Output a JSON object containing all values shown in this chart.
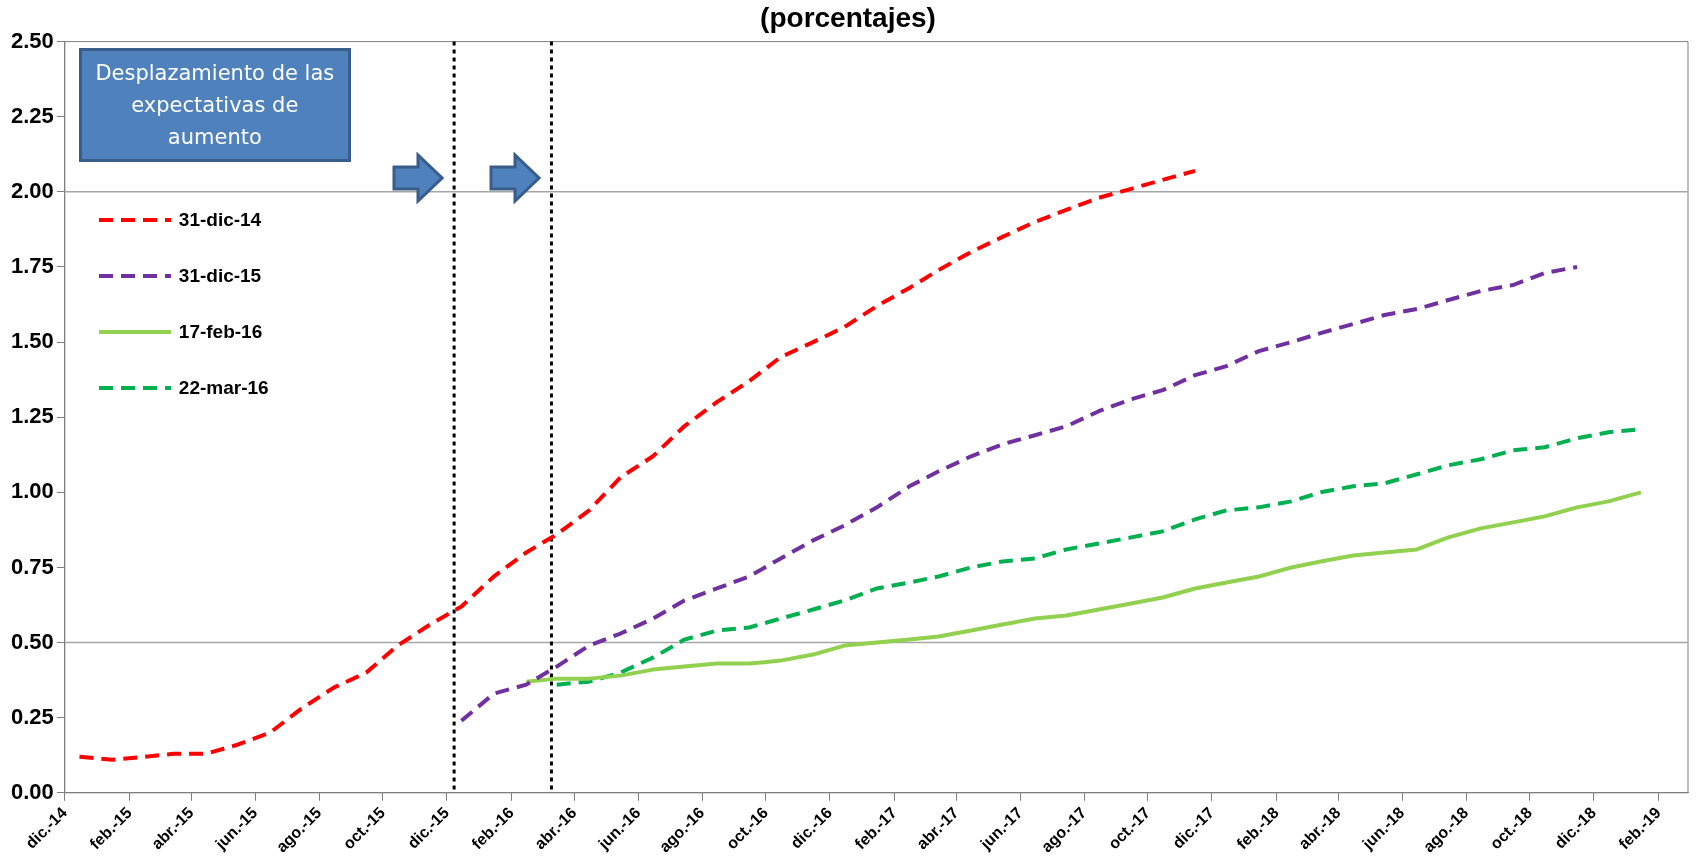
{
  "chart_data": {
    "type": "line",
    "title": "(porcentajes)",
    "annotations": [
      "Desplazamiento de las expectativas de aumento"
    ],
    "xlim": [
      "2014-12",
      "2019-03"
    ],
    "xticks": [
      {
        "value": "2014-12",
        "label": "dic.-14"
      },
      {
        "value": "2015-02",
        "label": "feb.-15"
      },
      {
        "value": "2015-04",
        "label": "abr.-15"
      },
      {
        "value": "2015-06",
        "label": "jun.-15"
      },
      {
        "value": "2015-08",
        "label": "ago.-15"
      },
      {
        "value": "2015-10",
        "label": "oct.-15"
      },
      {
        "value": "2015-12",
        "label": "dic.-15"
      },
      {
        "value": "2016-02",
        "label": "feb.-16"
      },
      {
        "value": "2016-04",
        "label": "abr.-16"
      },
      {
        "value": "2016-06",
        "label": "jun.-16"
      },
      {
        "value": "2016-08",
        "label": "ago.-16"
      },
      {
        "value": "2016-10",
        "label": "oct.-16"
      },
      {
        "value": "2016-12",
        "label": "dic.-16"
      },
      {
        "value": "2017-02",
        "label": "feb.-17"
      },
      {
        "value": "2017-04",
        "label": "abr.-17"
      },
      {
        "value": "2017-06",
        "label": "jun.-17"
      },
      {
        "value": "2017-08",
        "label": "ago.-17"
      },
      {
        "value": "2017-10",
        "label": "oct.-17"
      },
      {
        "value": "2017-12",
        "label": "dic.-17"
      },
      {
        "value": "2018-02",
        "label": "feb.-18"
      },
      {
        "value": "2018-04",
        "label": "abr.-18"
      },
      {
        "value": "2018-06",
        "label": "jun.-18"
      },
      {
        "value": "2018-08",
        "label": "ago.-18"
      },
      {
        "value": "2018-10",
        "label": "oct.-18"
      },
      {
        "value": "2018-12",
        "label": "dic.-18"
      },
      {
        "value": "2019-02",
        "label": "feb.-19"
      }
    ],
    "ylim": [
      0,
      2.5
    ],
    "yticks": [
      {
        "value": 0,
        "label": "0.00"
      },
      {
        "value": 0.25,
        "label": "0.25"
      },
      {
        "value": 0.5,
        "label": "0.50"
      },
      {
        "value": 0.75,
        "label": "0.75"
      },
      {
        "value": 1,
        "label": "1.00"
      },
      {
        "value": 1.25,
        "label": "1.25"
      },
      {
        "value": 1.5,
        "label": "1.50"
      },
      {
        "value": 1.75,
        "label": "1.75"
      },
      {
        "value": 2,
        "label": "2.00"
      },
      {
        "value": 2.25,
        "label": "2.25"
      },
      {
        "value": 2.5,
        "label": "2.50"
      }
    ],
    "grid": false,
    "legend": "top left",
    "marker": "none",
    "ref_lines": [
      {
        "axis": "y",
        "value": 0.5,
        "color": "#a6a6a6",
        "line_style": "solid"
      },
      {
        "axis": "y",
        "value": 2,
        "color": "#a6a6a6",
        "line_style": "solid"
      },
      {
        "axis": "x",
        "value": "2015-12-08",
        "color": "#000000",
        "line_style": "dotted"
      },
      {
        "axis": "x",
        "value": "2016-03-10",
        "color": "#000000",
        "line_style": "dotted"
      }
    ],
    "series": [
      {
        "name": "31-dic-14",
        "color": "#ff0000",
        "line_style": "dashed",
        "x": [
          "2014-12-15",
          "2015-01-15",
          "2015-02-15",
          "2015-03-15",
          "2015-04-15",
          "2015-05-15",
          "2015-06-15",
          "2015-07-15",
          "2015-08-15",
          "2015-09-15",
          "2015-10-15",
          "2015-11-15",
          "2015-12-15",
          "2016-01-15",
          "2016-02-15",
          "2016-03-15",
          "2016-04-15",
          "2016-05-15",
          "2016-06-15",
          "2016-07-15",
          "2016-08-15",
          "2016-09-15",
          "2016-10-15",
          "2016-11-15",
          "2016-12-15",
          "2017-01-15",
          "2017-02-15",
          "2017-03-15",
          "2017-04-15",
          "2017-05-15",
          "2017-06-15",
          "2017-07-15",
          "2017-08-15",
          "2017-09-15",
          "2017-10-15",
          "2017-11-15"
        ],
        "values": [
          0.12,
          0.11,
          0.12,
          0.13,
          0.13,
          0.16,
          0.2,
          0.28,
          0.35,
          0.4,
          0.49,
          0.56,
          0.62,
          0.72,
          0.8,
          0.86,
          0.94,
          1.05,
          1.12,
          1.22,
          1.3,
          1.37,
          1.45,
          1.5,
          1.55,
          1.62,
          1.68,
          1.74,
          1.8,
          1.85,
          1.9,
          1.94,
          1.98,
          2.01,
          2.04,
          2.07
        ]
      },
      {
        "name": "31-dic-15",
        "color": "#7030a0",
        "line_style": "dashed",
        "x": [
          "2015-12-15",
          "2016-01-15",
          "2016-02-15",
          "2016-03-15",
          "2016-04-15",
          "2016-05-15",
          "2016-06-15",
          "2016-07-15",
          "2016-08-15",
          "2016-09-15",
          "2016-10-15",
          "2016-11-15",
          "2016-12-15",
          "2017-01-15",
          "2017-02-15",
          "2017-03-15",
          "2017-04-15",
          "2017-05-15",
          "2017-06-15",
          "2017-07-15",
          "2017-08-15",
          "2017-09-15",
          "2017-10-15",
          "2017-11-15",
          "2017-12-15",
          "2018-01-15",
          "2018-02-15",
          "2018-03-15",
          "2018-04-15",
          "2018-05-15",
          "2018-06-15",
          "2018-07-15",
          "2018-08-15",
          "2018-09-15",
          "2018-10-15",
          "2018-11-15"
        ],
        "values": [
          0.24,
          0.33,
          0.36,
          0.42,
          0.49,
          0.53,
          0.58,
          0.64,
          0.68,
          0.72,
          0.78,
          0.84,
          0.89,
          0.95,
          1.02,
          1.07,
          1.12,
          1.16,
          1.19,
          1.22,
          1.27,
          1.31,
          1.34,
          1.39,
          1.42,
          1.47,
          1.5,
          1.53,
          1.56,
          1.59,
          1.61,
          1.64,
          1.67,
          1.69,
          1.73,
          1.75
        ]
      },
      {
        "name": "17-feb-16",
        "color": "#92d050",
        "line_style": "solid",
        "x": [
          "2016-02-15",
          "2016-03-15",
          "2016-04-15",
          "2016-05-15",
          "2016-06-15",
          "2016-07-15",
          "2016-08-15",
          "2016-09-15",
          "2016-10-15",
          "2016-11-15",
          "2016-12-15",
          "2017-01-15",
          "2017-02-15",
          "2017-03-15",
          "2017-04-15",
          "2017-05-15",
          "2017-06-15",
          "2017-07-15",
          "2017-08-15",
          "2017-09-15",
          "2017-10-15",
          "2017-11-15",
          "2017-12-15",
          "2018-01-15",
          "2018-02-15",
          "2018-03-15",
          "2018-04-15",
          "2018-05-15",
          "2018-06-15",
          "2018-07-15",
          "2018-08-15",
          "2018-09-15",
          "2018-10-15",
          "2018-11-15",
          "2018-12-15",
          "2019-01-15"
        ],
        "values": [
          0.37,
          0.38,
          0.38,
          0.39,
          0.41,
          0.42,
          0.43,
          0.43,
          0.44,
          0.46,
          0.49,
          0.5,
          0.51,
          0.52,
          0.54,
          0.56,
          0.58,
          0.59,
          0.61,
          0.63,
          0.65,
          0.68,
          0.7,
          0.72,
          0.75,
          0.77,
          0.79,
          0.8,
          0.81,
          0.85,
          0.88,
          0.9,
          0.92,
          0.95,
          0.97,
          1.0
        ]
      },
      {
        "name": "22-mar-16",
        "color": "#00b050",
        "line_style": "dashed",
        "x": [
          "2016-03-15",
          "2016-04-15",
          "2016-05-15",
          "2016-06-15",
          "2016-07-15",
          "2016-08-15",
          "2016-09-15",
          "2016-10-15",
          "2016-11-15",
          "2016-12-15",
          "2017-01-15",
          "2017-02-15",
          "2017-03-15",
          "2017-04-15",
          "2017-05-15",
          "2017-06-15",
          "2017-07-15",
          "2017-08-15",
          "2017-09-15",
          "2017-10-15",
          "2017-11-15",
          "2017-12-15",
          "2018-01-15",
          "2018-02-15",
          "2018-03-15",
          "2018-04-15",
          "2018-05-15",
          "2018-06-15",
          "2018-07-15",
          "2018-08-15",
          "2018-09-15",
          "2018-10-15",
          "2018-11-15",
          "2018-12-15",
          "2019-01-15"
        ],
        "values": [
          0.36,
          0.37,
          0.4,
          0.45,
          0.51,
          0.54,
          0.55,
          0.58,
          0.61,
          0.64,
          0.68,
          0.7,
          0.72,
          0.75,
          0.77,
          0.78,
          0.81,
          0.83,
          0.85,
          0.87,
          0.91,
          0.94,
          0.95,
          0.97,
          1.0,
          1.02,
          1.03,
          1.06,
          1.09,
          1.11,
          1.14,
          1.15,
          1.18,
          1.2,
          1.21
        ]
      }
    ]
  }
}
